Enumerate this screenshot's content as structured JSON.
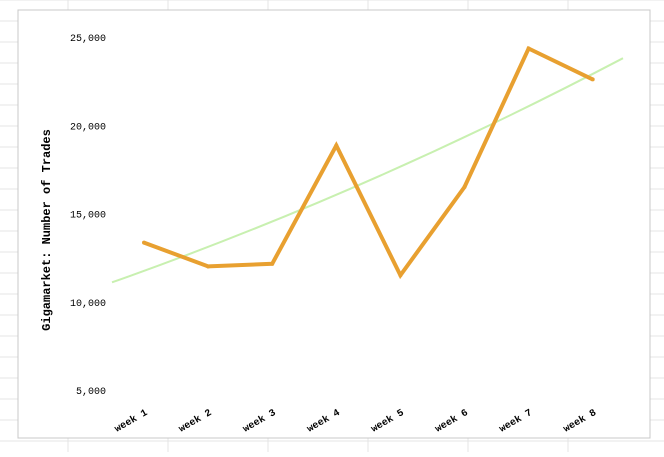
{
  "chart_data": {
    "type": "line",
    "categories": [
      "week 1",
      "week 2",
      "week 3",
      "week 4",
      "week 5",
      "week 6",
      "week 7",
      "week 8"
    ],
    "series": [
      {
        "values": [
          13350,
          12000,
          12150,
          18850,
          11500,
          16500,
          24350,
          22600
        ],
        "color": "#E8A030"
      }
    ],
    "trendline": {
      "values": [
        11100,
        23800
      ],
      "color": "#C8F0B0"
    },
    "title": "",
    "xlabel": "",
    "ylabel": "Gigamarket: Number of Trades",
    "ylim": [
      5000,
      25000
    ],
    "yticks": [
      5000,
      10000,
      15000,
      20000,
      25000
    ],
    "ytick_labels": [
      "5,000",
      "10,000",
      "15,000",
      "20,000",
      "25,000"
    ],
    "grid": true,
    "legend": "none"
  }
}
